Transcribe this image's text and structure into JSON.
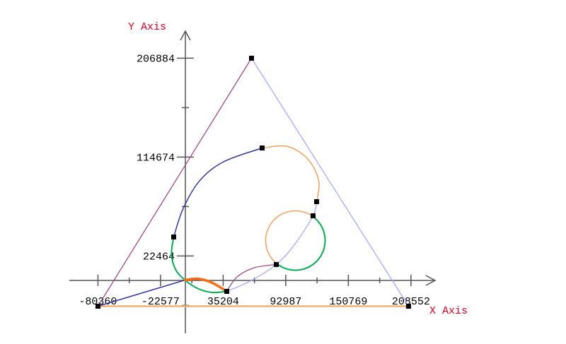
{
  "chart_data": {
    "type": "line",
    "xlabel": "X Axis",
    "ylabel": "Y Axis",
    "xlim": [
      -80360,
      208552
    ],
    "ylim": [
      -24370,
      206884
    ],
    "x_ticks": [
      "-80360",
      "-22577",
      "35204",
      "92987",
      "150769",
      "208552"
    ],
    "x_tick_values": [
      -80360,
      -22577,
      35204,
      92987,
      150769,
      208552
    ],
    "y_ticks": [
      "22464",
      "114674",
      "206884"
    ],
    "y_tick_values": [
      22464,
      114674,
      206884
    ],
    "grid": false,
    "axis_color": "#555555",
    "label_color": "#e00020",
    "curves": [
      {
        "color": "#9b4a88",
        "width": 1.3,
        "points": [
          [
            -80360,
            -24370
          ],
          [
            61380,
            206884
          ]
        ]
      },
      {
        "color": "#a8a8ff",
        "width": 1.3,
        "points": [
          [
            61380,
            206884
          ],
          [
            206300,
            -24370
          ]
        ]
      },
      {
        "color": "#f4b070",
        "width": 2.5,
        "points": [
          [
            -80360,
            -24370
          ],
          [
            206300,
            -24370
          ]
        ]
      },
      {
        "color": "#3535a5",
        "width": 1.5,
        "points": [
          [
            -80360,
            -24370
          ],
          [
            0,
            0
          ]
        ]
      },
      {
        "color": "#00b050",
        "width": 2,
        "points": [
          [
            -10450,
            40170
          ],
          [
            -12500,
            24000
          ],
          [
            -8500,
            9500
          ],
          [
            0,
            0
          ],
          [
            12000,
            -8000
          ],
          [
            25000,
            -11500
          ],
          [
            38530,
            -10540
          ]
        ]
      },
      {
        "color": "#ff6a10",
        "width": 3.5,
        "points": [
          [
            0,
            0
          ],
          [
            12000,
            1200
          ],
          [
            25000,
            -2500
          ],
          [
            38530,
            -10540
          ]
        ]
      },
      {
        "color": "#9b4a88",
        "width": 1.3,
        "points": [
          [
            38530,
            -10540
          ],
          [
            48000,
            3000
          ],
          [
            64000,
            11500
          ],
          [
            84240,
            14490
          ]
        ]
      },
      {
        "color": "#a8a8ff",
        "width": 1.3,
        "points": [
          [
            38530,
            -10540
          ],
          [
            60000,
            -1000
          ],
          [
            84240,
            14490
          ],
          [
            101000,
            33000
          ],
          [
            118200,
            59930
          ],
          [
            121460,
            73100
          ]
        ]
      },
      {
        "color": "#3535a5",
        "width": 1.5,
        "points": [
          [
            -10450,
            40170
          ],
          [
            -2000,
            66000
          ],
          [
            13000,
            92000
          ],
          [
            35000,
            110000
          ],
          [
            71180,
            123160
          ]
        ]
      },
      {
        "color": "#f4a060",
        "width": 1.5,
        "points": [
          [
            71180,
            123160
          ],
          [
            95000,
            124500
          ],
          [
            114000,
            112000
          ],
          [
            123500,
            92000
          ],
          [
            121460,
            73100
          ]
        ]
      }
    ],
    "arcs": [
      {
        "color": "#f4a060",
        "width": 1.5,
        "center": [
          101870,
          36880
        ],
        "radius": [
          27430,
          27660
        ],
        "start_deg": 54,
        "end_deg": 232
      },
      {
        "color": "#00b050",
        "width": 2,
        "center": [
          101870,
          36880
        ],
        "radius": [
          27430,
          27660
        ],
        "start_deg": 232,
        "end_deg": 414
      }
    ],
    "markers": [
      [
        -80360,
        -24370
      ],
      [
        206300,
        -24370
      ],
      [
        61380,
        206884
      ],
      [
        38530,
        -10540
      ],
      [
        84240,
        14490
      ],
      [
        118200,
        59930
      ],
      [
        121460,
        73100
      ],
      [
        71180,
        123160
      ],
      [
        -10450,
        40170
      ]
    ]
  }
}
